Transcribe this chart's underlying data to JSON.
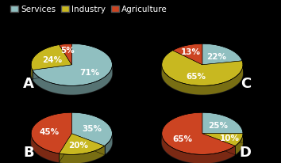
{
  "background_color": "#000000",
  "legend": {
    "labels": [
      "Services",
      "Industry",
      "Agriculture"
    ],
    "colors": [
      "#90bfc0",
      "#c8b820",
      "#cc4422"
    ]
  },
  "charts": [
    {
      "label": "A",
      "label_side": "left",
      "slices": [
        71,
        24,
        5
      ],
      "colors": [
        "#90bfc0",
        "#c8b820",
        "#cc4422"
      ],
      "texts": [
        "71%",
        "24%",
        "5%"
      ],
      "start_angle": 90
    },
    {
      "label": "C",
      "label_side": "right",
      "slices": [
        22,
        65,
        13
      ],
      "colors": [
        "#90bfc0",
        "#c8b820",
        "#cc4422"
      ],
      "texts": [
        "22%",
        "65%",
        "13%"
      ],
      "start_angle": 90
    },
    {
      "label": "B",
      "label_side": "left",
      "slices": [
        35,
        20,
        45
      ],
      "colors": [
        "#90bfc0",
        "#c8b820",
        "#cc4422"
      ],
      "texts": [
        "35%",
        "20%",
        "45%"
      ],
      "start_angle": 90
    },
    {
      "label": "D",
      "label_side": "right",
      "slices": [
        25,
        10,
        65
      ],
      "colors": [
        "#90bfc0",
        "#c8b820",
        "#cc4422"
      ],
      "texts": [
        "25%",
        "10%",
        "65%"
      ],
      "start_angle": 90
    }
  ],
  "chart_label_fontsize": 13,
  "pct_fontsize": 7.5,
  "legend_fontsize": 7.5
}
